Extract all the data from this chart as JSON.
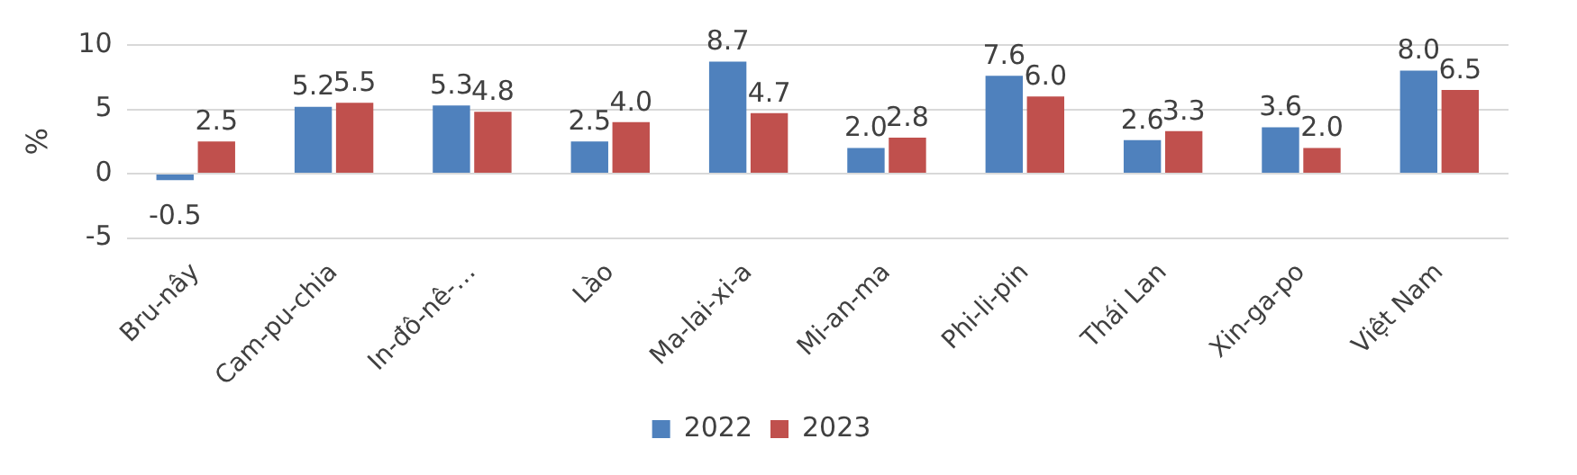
{
  "chart_data": {
    "type": "bar",
    "ylabel": "%",
    "categories": [
      "Bru-nây",
      "Cam-pu-chia",
      "In-đô-nê-…",
      "Lào",
      "Ma-lai-xi-a",
      "Mi-an-ma",
      "Phi-li-pin",
      "Thái Lan",
      "Xin-ga-po",
      "Việt Nam"
    ],
    "series": [
      {
        "name": "2022",
        "color": "#4f81bd",
        "values": [
          -0.5,
          5.2,
          5.3,
          2.5,
          8.7,
          2.0,
          7.6,
          2.6,
          3.6,
          8.0
        ],
        "value_labels": [
          "-0.5",
          "5.2",
          "5.3",
          "2.5",
          "8.7",
          "2.0",
          "7.6",
          "2.6",
          "3.6",
          "8.0"
        ]
      },
      {
        "name": "2023",
        "color": "#c0504d",
        "values": [
          2.5,
          5.5,
          4.8,
          4.0,
          4.7,
          2.8,
          6.0,
          3.3,
          2.0,
          6.5
        ],
        "value_labels": [
          "2.5",
          "5.5",
          "4.8",
          "4.0",
          "4.7",
          "2.8",
          "6.0",
          "3.3",
          "2.0",
          "6.5"
        ]
      }
    ],
    "ylim": [
      -5,
      10
    ],
    "yticks": [
      -5,
      0,
      5,
      10
    ],
    "grid": "y",
    "legend": "bottom"
  }
}
